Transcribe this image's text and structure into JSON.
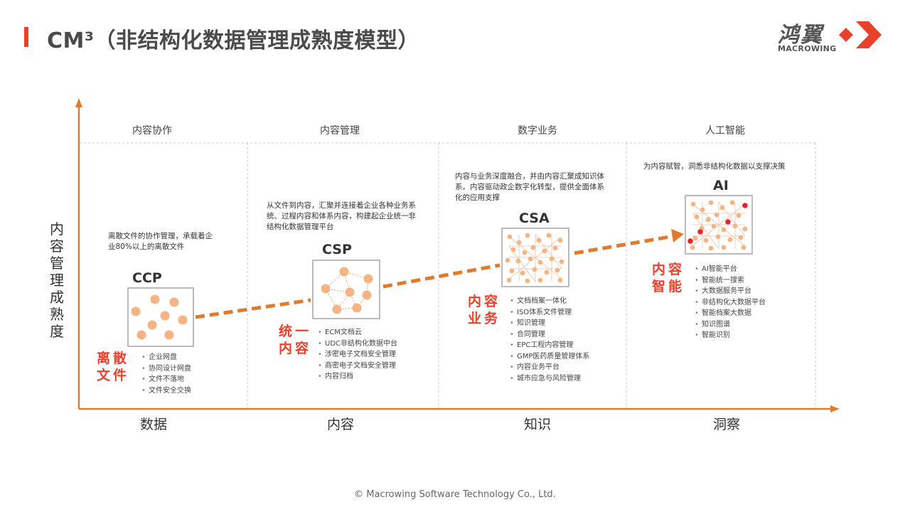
{
  "header": {
    "title": "CM³（非结构化数据管理成熟度模型）",
    "logo_cn": "鸿翼",
    "logo_en": "MACROWING",
    "accent_color": "#e8412c"
  },
  "axes": {
    "y_label": "内容管理成熟度",
    "x_labels": [
      "数据",
      "内容",
      "知识",
      "洞察"
    ]
  },
  "columns": [
    {
      "heading": "内容协作",
      "description": "离散文件的协作管理，承载着企业80%以上的离散文件",
      "stage": "CCP",
      "tag": "离散文件",
      "features": [
        "企业网盘",
        "协同设计网盘",
        "文件不落地",
        "文件安全交换"
      ]
    },
    {
      "heading": "内容管理",
      "description": "从文件到内容，汇聚并连接着企业各种业务系统、过程内容和体系内容，构建起企业统一非结构化数据管理平台",
      "stage": "CSP",
      "tag": "统一内容",
      "features": [
        "ECM文档云",
        "UDC非结构化数据中台",
        "涉密电子文档安全管理",
        "商密电子文档安全管理",
        "内容归档"
      ]
    },
    {
      "heading": "数字业务",
      "description": "内容与业务深度融合，并由内容汇聚成知识体系。内容驱动政企数字化转型，提供全面体系化的应用支撑",
      "stage": "CSA",
      "tag": "内容业务",
      "features": [
        "文档档案一体化",
        "ISO体系文件管理",
        "知识管理",
        "合同管理",
        "EPC工程内容管理",
        "GMP医药质量管理体系",
        "内容业务平台",
        "城市应急与风险管理"
      ]
    },
    {
      "heading": "人工智能",
      "description": "为内容赋智，洞悉非结构化数据以支撑决策",
      "stage": "AI",
      "tag": "内容智能",
      "features": [
        "AI智能平台",
        "智能统一搜索",
        "大数据服务平台",
        "非结构化大数据平台",
        "智能档案大数据",
        "知识图谱",
        "智能识别"
      ]
    }
  ],
  "footer": "© Macrowing Software Technology Co., Ltd."
}
